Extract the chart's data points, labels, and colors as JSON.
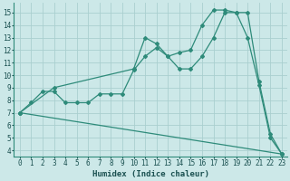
{
  "xlabel": "Humidex (Indice chaleur)",
  "xlim": [
    -0.5,
    23.5
  ],
  "ylim": [
    3.5,
    15.8
  ],
  "xticks": [
    0,
    1,
    2,
    3,
    4,
    5,
    6,
    7,
    8,
    9,
    10,
    11,
    12,
    13,
    14,
    15,
    16,
    17,
    18,
    19,
    20,
    21,
    22,
    23
  ],
  "yticks": [
    4,
    5,
    6,
    7,
    8,
    9,
    10,
    11,
    12,
    13,
    14,
    15
  ],
  "line_color": "#2e8b7a",
  "bg_color": "#cce8e8",
  "grid_color": "#aacfcf",
  "line1_x": [
    0,
    1,
    2,
    3,
    4,
    5,
    6,
    7,
    8,
    9,
    10,
    11,
    12,
    13,
    14,
    15,
    16,
    17,
    18,
    19,
    20,
    21,
    22,
    23
  ],
  "line1_y": [
    7.0,
    7.8,
    8.7,
    8.7,
    7.8,
    7.8,
    7.8,
    8.5,
    8.5,
    8.5,
    10.4,
    11.5,
    12.2,
    11.5,
    10.5,
    10.5,
    11.5,
    13.0,
    15.0,
    15.0,
    13.0,
    9.2,
    5.0,
    3.7
  ],
  "line2_x": [
    0,
    3,
    10,
    11,
    12,
    13,
    14,
    15,
    16,
    17,
    18,
    19,
    20,
    21,
    22,
    23
  ],
  "line2_y": [
    7.0,
    9.0,
    10.5,
    13.0,
    12.5,
    11.5,
    11.8,
    12.0,
    14.0,
    15.2,
    15.2,
    15.0,
    15.0,
    9.5,
    5.3,
    3.7
  ],
  "line3_x": [
    0,
    23
  ],
  "line3_y": [
    7.0,
    3.7
  ]
}
